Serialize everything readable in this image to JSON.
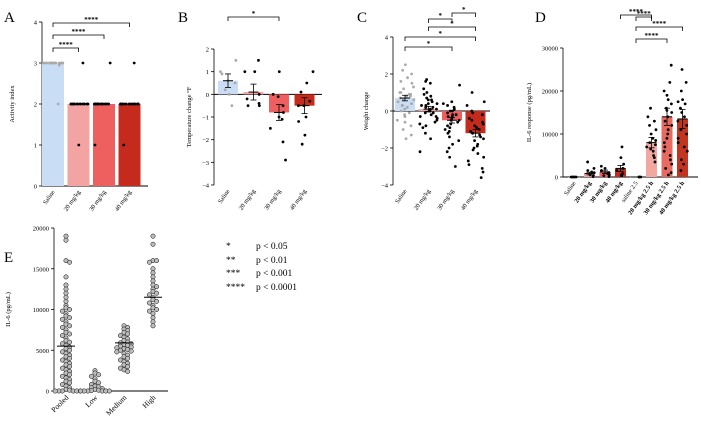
{
  "panel_labels": [
    "A",
    "B",
    "C",
    "D",
    "E"
  ],
  "legend": [
    {
      "symbol": "*",
      "text": "p < 0.05"
    },
    {
      "symbol": "**",
      "text": "p < 0.01"
    },
    {
      "symbol": "***",
      "text": "p < 0.001"
    },
    {
      "symbol": "****",
      "text": "p < 0.0001"
    }
  ],
  "colors": {
    "saline": "#c9def5",
    "dose20": "#f4a3a3",
    "dose30": "#ee5f5f",
    "dose40": "#c42b1c",
    "dose20_24h": "#f2a7a0",
    "dose30_24h": "#e86a60",
    "dose40_24h": "#c2341f",
    "point": "#000000",
    "saline_point": "#a9a9a9",
    "panelE_point": "#bdbdbd"
  },
  "chart_data": [
    {
      "panel": "A",
      "type": "bar",
      "ylabel": "Activity index",
      "ylim": [
        0,
        4
      ],
      "yticks": [
        0,
        1,
        2,
        3,
        4
      ],
      "categories": [
        "Saline",
        "20 mg/kg",
        "30 mg/kg",
        "40 mg/kg"
      ],
      "values": [
        3.0,
        2.0,
        2.0,
        2.0
      ],
      "points": [
        [
          3,
          3,
          3,
          3,
          3,
          3,
          3,
          3,
          3,
          3,
          3,
          3,
          3,
          3,
          2.95,
          3,
          3,
          3,
          3,
          3,
          2.0
        ],
        [
          3,
          2,
          2,
          2,
          2,
          2,
          2,
          2,
          2,
          2,
          2,
          2,
          2,
          2,
          2,
          2,
          1,
          2,
          2,
          2
        ],
        [
          3,
          2,
          2,
          2,
          2,
          2,
          2,
          2,
          2,
          2,
          2,
          2,
          2,
          2,
          2,
          2,
          2,
          1,
          2,
          2
        ],
        [
          3,
          2,
          2,
          2,
          2,
          2,
          2,
          2,
          2,
          2,
          2,
          2,
          2,
          2,
          2,
          2,
          2,
          1,
          2,
          2
        ]
      ],
      "significance": [
        {
          "from": 0,
          "to": 1,
          "label": "****"
        },
        {
          "from": 0,
          "to": 2,
          "label": "****"
        },
        {
          "from": 0,
          "to": 3,
          "label": "****"
        }
      ]
    },
    {
      "panel": "B",
      "type": "bar",
      "ylabel": "Temperature change °F",
      "ylim": [
        -4,
        2
      ],
      "yticks": [
        -4,
        -3,
        -2,
        -1,
        0,
        1,
        2
      ],
      "categories": [
        "Saline",
        "20 mg/kg",
        "30 mg/kg",
        "40 mg/kg"
      ],
      "values": [
        0.6,
        0.1,
        -0.8,
        -0.5
      ],
      "errors": [
        0.3,
        0.35,
        0.35,
        0.35
      ],
      "points": [
        [
          1.5,
          1.0,
          0.9,
          0.6,
          0.5,
          0.2,
          0.0,
          -0.5
        ],
        [
          1.5,
          1.0,
          1.0,
          0.0,
          -0.2,
          -0.4,
          -0.5,
          -0.5
        ],
        [
          1.0,
          0.0,
          -0.1,
          -0.5,
          -0.8,
          -1.0,
          -1.1,
          -1.5,
          -2.1,
          -2.9
        ],
        [
          1.0,
          0.5,
          0.1,
          -0.3,
          -0.5,
          -0.5,
          -1.0,
          -1.2,
          -1.8,
          -2.2
        ]
      ],
      "significance": [
        {
          "from": 0,
          "to": 2,
          "label": "*"
        }
      ]
    },
    {
      "panel": "C",
      "type": "bar",
      "ylabel": "Weight change",
      "ylim": [
        -4,
        4
      ],
      "yticks": [
        -4,
        -2,
        0,
        2,
        4
      ],
      "categories": [
        "Saline",
        "20 mg/kg",
        "30 mg/kg",
        "40 mg/kg"
      ],
      "values": [
        0.7,
        0.1,
        -0.5,
        -1.2
      ],
      "errors": [
        0.15,
        0.15,
        0.15,
        0.2
      ],
      "points": [
        [
          2.5,
          2.2,
          2.0,
          1.8,
          1.6,
          1.5,
          1.3,
          1.2,
          1.0,
          1.0,
          0.9,
          0.8,
          0.8,
          0.7,
          0.6,
          0.5,
          0.4,
          0.3,
          0.2,
          0.1,
          0.0,
          -0.1,
          -0.2,
          -0.3,
          -0.5,
          -0.6,
          -0.8,
          -1.0,
          -1.3,
          -1.5,
          0.9,
          0.6,
          0.3
        ],
        [
          1.7,
          1.6,
          1.5,
          1.2,
          1.0,
          0.8,
          0.7,
          0.6,
          0.5,
          0.4,
          0.3,
          0.3,
          0.2,
          0.2,
          0.1,
          0.0,
          0.0,
          -0.1,
          -0.1,
          -0.2,
          -0.3,
          -0.4,
          -0.5,
          -0.6,
          -0.8,
          -0.9,
          -1.2,
          -1.5,
          -2.2,
          0.1,
          0.4,
          -0.3,
          0.6,
          -0.7,
          0.9
        ],
        [
          1.4,
          0.5,
          0.4,
          0.3,
          0.2,
          0.1,
          0.0,
          -0.1,
          -0.2,
          -0.3,
          -0.3,
          -0.4,
          -0.5,
          -0.6,
          -0.7,
          -0.8,
          -0.9,
          -1.0,
          -1.1,
          -1.2,
          -1.4,
          -1.6,
          -1.8,
          -2.0,
          -2.2,
          -2.5,
          -3.0,
          0.0,
          -0.5,
          -0.2
        ],
        [
          1.0,
          0.5,
          0.3,
          0.0,
          -0.2,
          -0.4,
          -0.5,
          -0.6,
          -0.8,
          -0.9,
          -1.0,
          -1.1,
          -1.2,
          -1.3,
          -1.5,
          -1.6,
          -1.8,
          -2.0,
          -2.1,
          -2.3,
          -2.5,
          -2.7,
          -2.9,
          -3.1,
          -3.3,
          -3.6,
          -0.7,
          -1.4,
          -0.1,
          -1.9
        ]
      ],
      "significance": [
        {
          "from": 0,
          "to": 2,
          "label": "*"
        },
        {
          "from": 0,
          "to": 3,
          "label": "*"
        },
        {
          "from": 1,
          "to": 3,
          "label": "*"
        },
        {
          "from": 1,
          "to": 2,
          "label": "*"
        },
        {
          "from": 2,
          "to": 3,
          "label": "*"
        }
      ]
    },
    {
      "panel": "D",
      "type": "bar",
      "ylabel": "IL-6 response (pg/mL)",
      "ylim": [
        0,
        30000
      ],
      "yticks": [
        0,
        10000,
        20000,
        30000
      ],
      "categories": [
        "Saline",
        "20 mg/kg",
        "30 mg/kg",
        "40 mg/kg",
        "saline 2.5",
        "20 mg/kg 2.5 h",
        "30 mg/kg 2.5 h",
        "40 mg/kg 2.5 h"
      ],
      "values": [
        0,
        800,
        1200,
        2000,
        0,
        8000,
        14000,
        13500
      ],
      "errors": [
        0,
        300,
        400,
        700,
        0,
        1200,
        2000,
        2200
      ],
      "points": [
        [
          0,
          0,
          0,
          0,
          0
        ],
        [
          3500,
          2000,
          1500,
          1000,
          500,
          300,
          100,
          1200
        ],
        [
          2500,
          2000,
          1500,
          1000,
          800,
          500,
          300,
          100
        ],
        [
          7000,
          4500,
          3000,
          2000,
          1500,
          800,
          500,
          200
        ],
        [
          0,
          0,
          0
        ],
        [
          16000,
          14000,
          12000,
          11000,
          10000,
          9000,
          8500,
          8000,
          7500,
          7000,
          6500,
          6000,
          5000,
          4500,
          3500,
          13000
        ],
        [
          26000,
          22000,
          20000,
          19000,
          18000,
          17000,
          16000,
          15000,
          14000,
          13000,
          12000,
          11000,
          10000,
          9000,
          8000,
          7000,
          6000,
          5000,
          4000,
          3000,
          2000,
          1000,
          500,
          15500
        ],
        [
          25000,
          22000,
          20000,
          18000,
          17000,
          16000,
          15000,
          14000,
          13000,
          12000,
          11000,
          10000,
          9000,
          8000,
          7000,
          6000,
          4000,
          3000,
          1500,
          17500
        ]
      ],
      "significance": [
        {
          "from": 4,
          "to": 6,
          "label": "****"
        },
        {
          "from": 4,
          "to": 7,
          "label": "****"
        },
        {
          "from": 4,
          "to": 5,
          "label": "****"
        },
        {
          "from": 3,
          "to": 5,
          "label": "****"
        }
      ]
    },
    {
      "panel": "E",
      "type": "scatter",
      "ylabel": "IL-6 (pg/mL)",
      "ylim": [
        0,
        20000
      ],
      "yticks": [
        0,
        5000,
        10000,
        15000,
        20000
      ],
      "categories": [
        "Pooled",
        "Low",
        "Medium",
        "High"
      ],
      "medians": [
        5500,
        null,
        5900,
        11500
      ],
      "points": [
        [
          19000,
          18500,
          16000,
          15800,
          14000,
          13000,
          12500,
          12000,
          11500,
          11000,
          10500,
          10200,
          10000,
          9800,
          9500,
          9200,
          9000,
          8800,
          8500,
          8200,
          8000,
          7800,
          7500,
          7200,
          7000,
          6800,
          6500,
          6200,
          6000,
          5800,
          5600,
          5400,
          5200,
          5000,
          4800,
          4600,
          4400,
          4200,
          4000,
          3800,
          3600,
          3400,
          3200,
          3000,
          2800,
          2600,
          2400,
          2200,
          2000,
          1800,
          1600,
          1400,
          1200,
          1000,
          800,
          600,
          400,
          200,
          100,
          0,
          0,
          0,
          0,
          0,
          0
        ],
        [
          2500,
          2200,
          2000,
          1800,
          1500,
          1200,
          1000,
          800,
          600,
          500,
          400,
          300,
          200,
          100,
          50,
          0,
          0,
          0,
          0,
          0,
          0
        ],
        [
          8000,
          7800,
          7600,
          7400,
          7200,
          7000,
          6800,
          6600,
          6400,
          6200,
          6000,
          5900,
          5800,
          5700,
          5600,
          5500,
          5400,
          5300,
          5200,
          5100,
          5000,
          4900,
          4800,
          4600,
          4400,
          4200,
          4000,
          3800,
          3600,
          3400,
          3200,
          3000,
          2800,
          2600,
          2400
        ],
        [
          19000,
          18000,
          16000,
          16000,
          15800,
          15000,
          14500,
          14000,
          13500,
          13000,
          12800,
          12500,
          12200,
          12000,
          11800,
          11500,
          11200,
          11000,
          10800,
          10500,
          10200,
          10000,
          9800,
          9500,
          9000,
          8500,
          8000
        ]
      ]
    }
  ]
}
